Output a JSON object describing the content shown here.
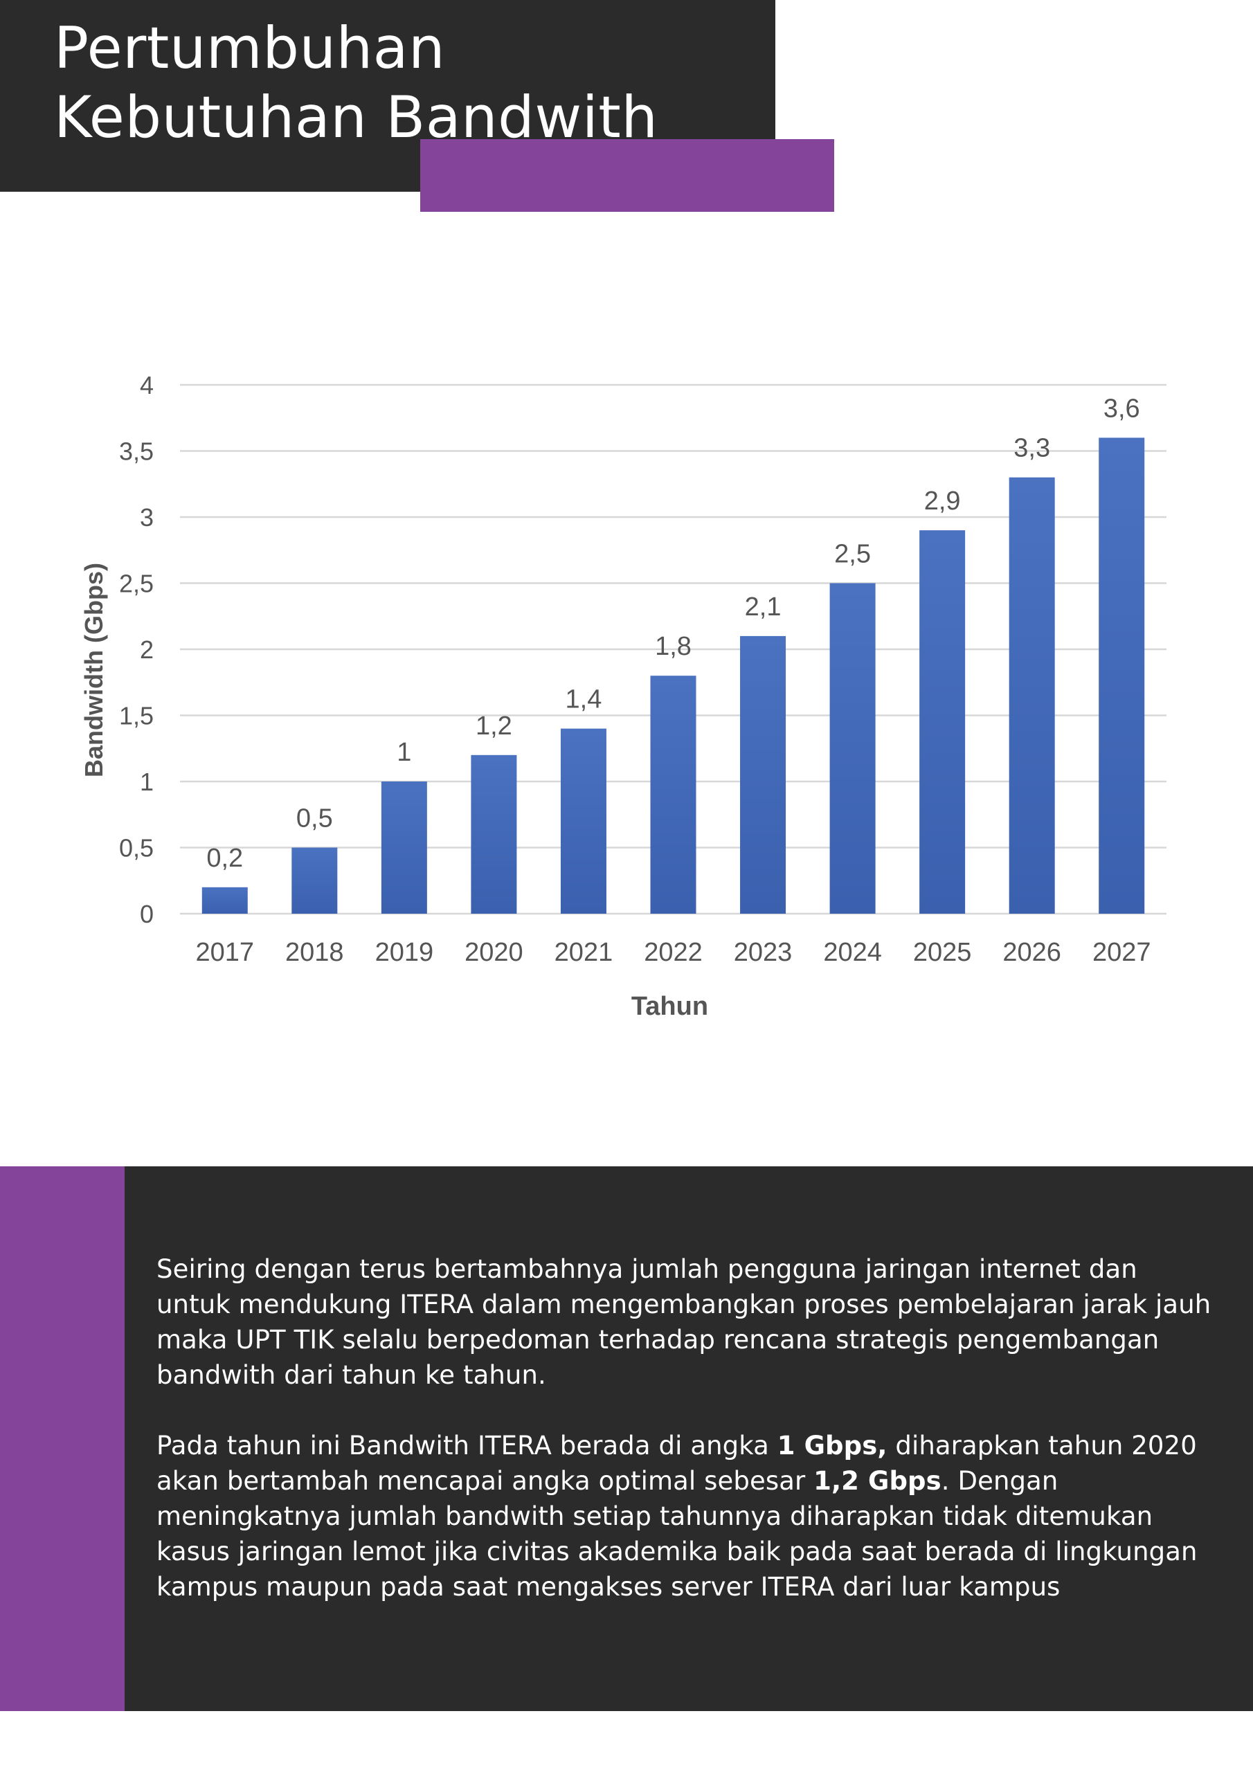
{
  "page": {
    "title": "Pertumbuhan Kebutuhan Bandwith"
  },
  "colors": {
    "dark_panel": "#2b2b2c",
    "accent_purple": "#84449a",
    "bar_blue": "#3f67b5",
    "grid": "#d7d7d7",
    "axis_text": "#555555"
  },
  "chart_data": {
    "type": "bar",
    "categories": [
      "2017",
      "2018",
      "2019",
      "2020",
      "2021",
      "2022",
      "2023",
      "2024",
      "2025",
      "2026",
      "2027"
    ],
    "values": [
      0.2,
      0.5,
      1,
      1.2,
      1.4,
      1.8,
      2.1,
      2.5,
      2.9,
      3.3,
      3.6
    ],
    "value_labels": [
      "0,2",
      "0,5",
      "1",
      "1,2",
      "1,4",
      "1,8",
      "2,1",
      "2,5",
      "2,9",
      "3,3",
      "3,6"
    ],
    "xlabel": "Tahun",
    "ylabel": "Bandwidth (Gbps)",
    "ylim": [
      0,
      4
    ],
    "yticks": [
      {
        "value": 0,
        "label": "0"
      },
      {
        "value": 0.5,
        "label": "0,5"
      },
      {
        "value": 1,
        "label": "1"
      },
      {
        "value": 1.5,
        "label": "1,5"
      },
      {
        "value": 2,
        "label": "2"
      },
      {
        "value": 2.5,
        "label": "2,5"
      },
      {
        "value": 3,
        "label": "3"
      },
      {
        "value": 3.5,
        "label": "3,5"
      },
      {
        "value": 4,
        "label": "4"
      }
    ],
    "grid": true,
    "legend": false
  },
  "description": {
    "paragraph1": "Seiring dengan terus bertambahnya jumlah pengguna jaringan internet dan untuk mendukung ITERA dalam mengembangkan proses pembelajaran jarak jauh maka UPT TIK selalu berpedoman terhadap rencana strategis pengembangan bandwith dari tahun ke tahun.",
    "paragraph2": {
      "part1": "Pada tahun ini Bandwith ITERA berada di angka ",
      "bold1": "1 Gbps,",
      "part2": " diharapkan tahun 2020 akan bertambah mencapai angka optimal sebesar ",
      "bold2": "1,2 Gbps",
      "part3": ". Dengan meningkatnya jumlah bandwith setiap tahunnya diharapkan tidak ditemukan kasus jaringan lemot jika civitas akademika baik pada saat berada di lingkungan kampus maupun pada saat mengakses server ITERA dari luar kampus"
    }
  }
}
